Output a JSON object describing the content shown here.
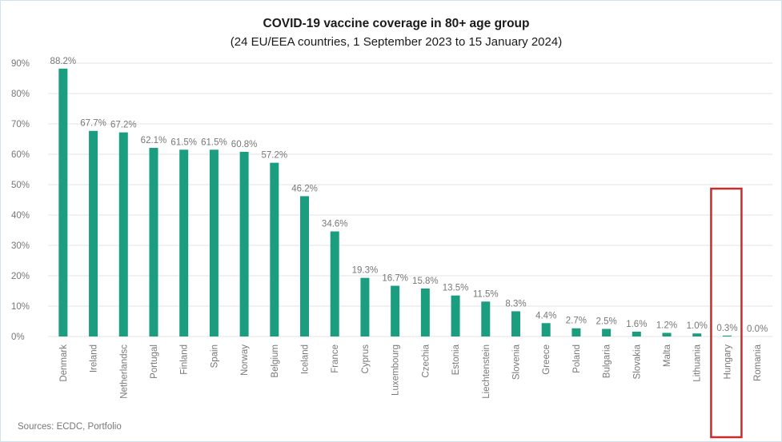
{
  "chart_data": {
    "type": "bar",
    "title": "COVID-19 vaccine coverage in 80+ age group",
    "subtitle": "(24 EU/EEA countries, 1 September 2023 to 15 January 2024)",
    "categories": [
      "Denmark",
      "Ireland",
      "Netherlandsc",
      "Portugal",
      "Finland",
      "Spain",
      "Norway",
      "Belgium",
      "Iceland",
      "France",
      "Cyprus",
      "Luxembourg",
      "Czechia",
      "Estonia",
      "Liechtenstein",
      "Slovenia",
      "Greece",
      "Poland",
      "Bulgaria",
      "Slovakia",
      "Malta",
      "Lithuania",
      "Hungary",
      "Romania"
    ],
    "values": [
      88.2,
      67.7,
      67.2,
      62.1,
      61.5,
      61.5,
      60.8,
      57.2,
      46.2,
      34.6,
      19.3,
      16.7,
      15.8,
      13.5,
      11.5,
      8.3,
      4.4,
      2.7,
      2.5,
      1.6,
      1.2,
      1.0,
      0.3,
      0.0
    ],
    "data_labels": [
      "88.2%",
      "67.7%",
      "67.2%",
      "62.1%",
      "61.5%",
      "61.5%",
      "60.8%",
      "57.2%",
      "46.2%",
      "34.6%",
      "19.3%",
      "16.7%",
      "15.8%",
      "13.5%",
      "11.5%",
      "8.3%",
      "4.4%",
      "2.7%",
      "2.5%",
      "1.6%",
      "1.2%",
      "1.0%",
      "0.3%",
      "0.0%"
    ],
    "yticks": [
      "0%",
      "10%",
      "20%",
      "30%",
      "40%",
      "50%",
      "60%",
      "70%",
      "80%",
      "90%"
    ],
    "ylim": [
      0,
      90
    ],
    "xlabel": "",
    "ylabel": "",
    "grid": true,
    "bar_color": "#1b9e80",
    "highlight": {
      "category": "Hungary",
      "color": "#cc2b2b"
    },
    "source": "Sources: ECDC, Portfolio"
  }
}
